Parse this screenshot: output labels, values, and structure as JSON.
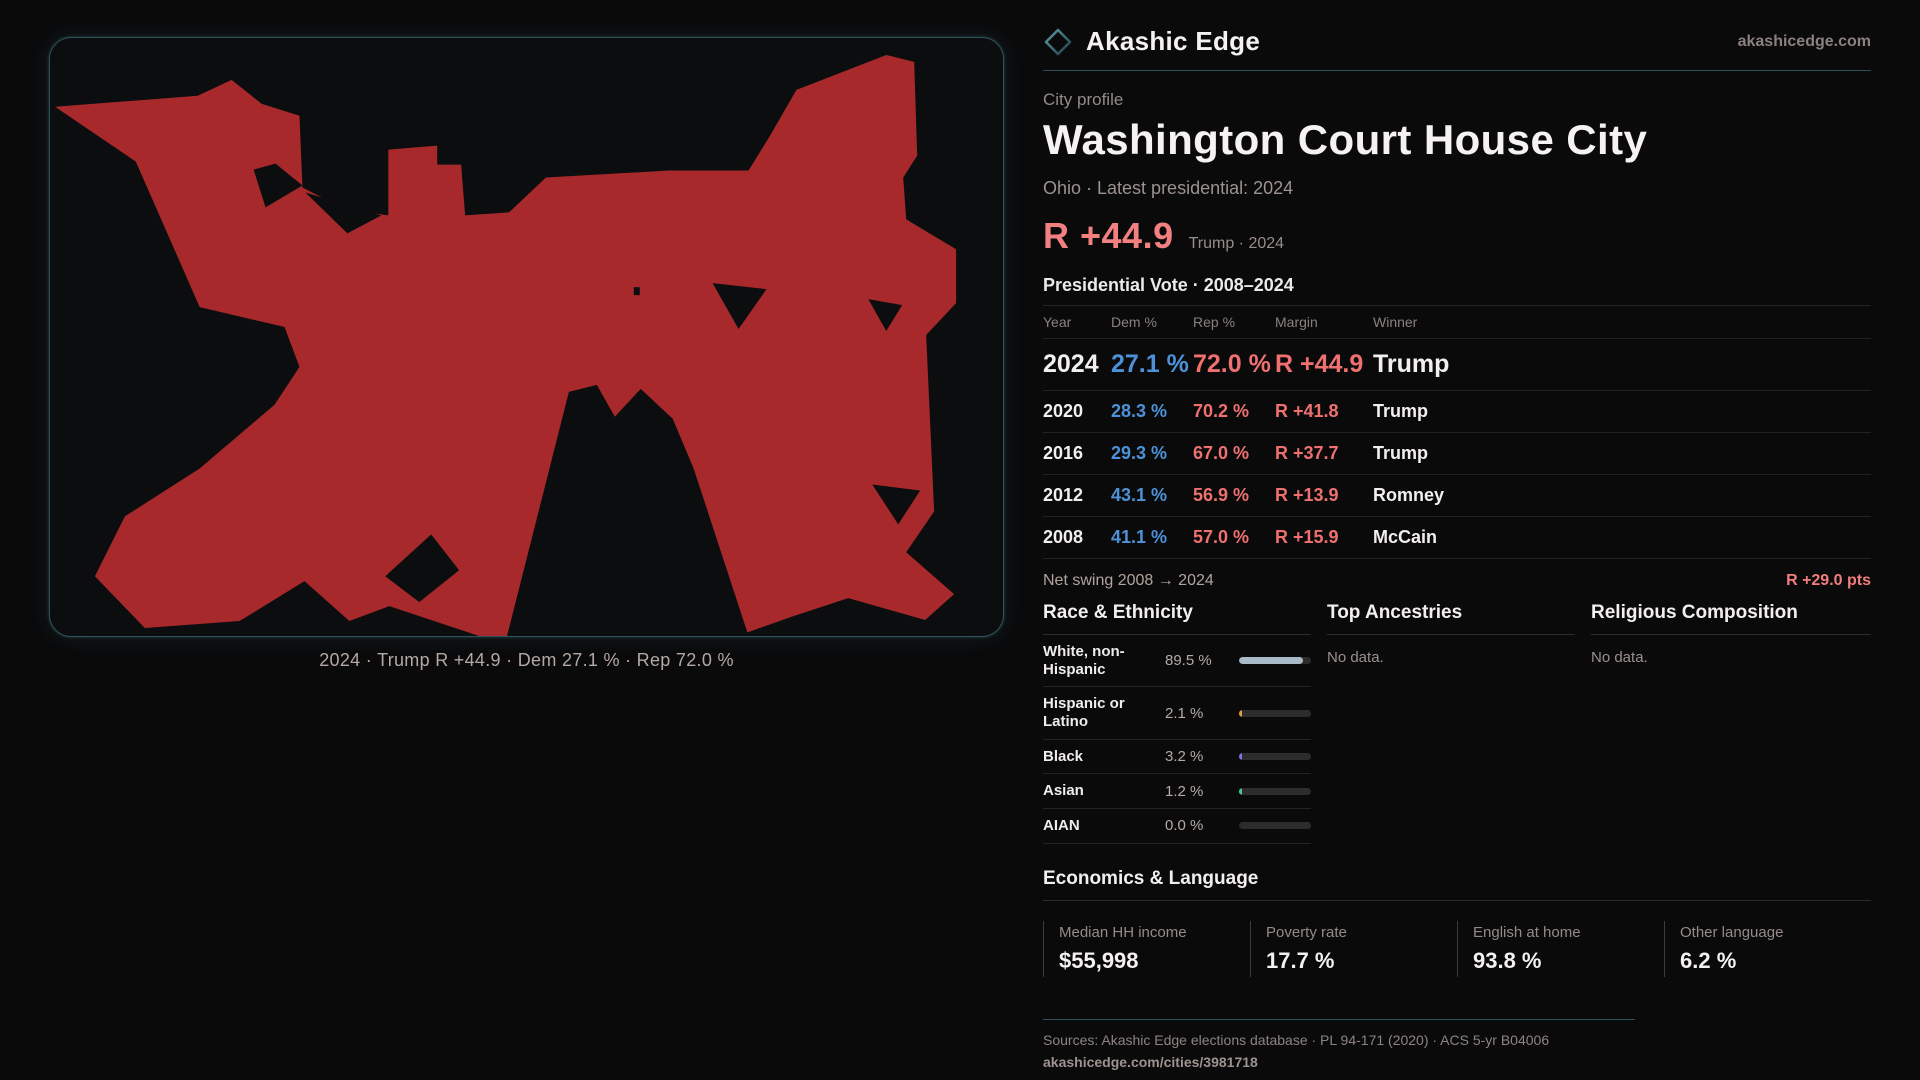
{
  "brand": {
    "name": "Akashic Edge",
    "domain": "akashicedge.com"
  },
  "profile": {
    "kicker": "City profile",
    "title": "Washington Court House City",
    "subtitle": "Ohio · Latest presidential: 2024"
  },
  "headline": {
    "margin": "R +44.9",
    "note": "Trump · 2024"
  },
  "map": {
    "caption": "2024 · Trump R +44.9 · Dem 27.1 % · Rep 72.0 %",
    "shape_color": "#a8292b"
  },
  "table": {
    "title": "Presidential Vote · 2008–2024",
    "headers": [
      "Year",
      "Dem %",
      "Rep %",
      "Margin",
      "Winner"
    ],
    "rows": [
      {
        "year": "2024",
        "dem": "27.1 %",
        "rep": "72.0 %",
        "margin": "R +44.9",
        "winner": "Trump"
      },
      {
        "year": "2020",
        "dem": "28.3 %",
        "rep": "70.2 %",
        "margin": "R +41.8",
        "winner": "Trump"
      },
      {
        "year": "2016",
        "dem": "29.3 %",
        "rep": "67.0 %",
        "margin": "R +37.7",
        "winner": "Trump"
      },
      {
        "year": "2012",
        "dem": "43.1 %",
        "rep": "56.9 %",
        "margin": "R +13.9",
        "winner": "Romney"
      },
      {
        "year": "2008",
        "dem": "41.1 %",
        "rep": "57.0 %",
        "margin": "R +15.9",
        "winner": "McCain"
      }
    ]
  },
  "net_swing": {
    "label": "Net swing 2008 → 2024",
    "value": "R +29.0 pts"
  },
  "race": {
    "title": "Race & Ethnicity",
    "rows": [
      {
        "label": "White, non-Hispanic",
        "value": "89.5 %",
        "percent": 89.5,
        "bar_color": "#a9bac9"
      },
      {
        "label": "Hispanic or Latino",
        "value": "2.1 %",
        "percent": 2.1,
        "bar_color": "#e39f3e"
      },
      {
        "label": "Black",
        "value": "3.2 %",
        "percent": 3.2,
        "bar_color": "#8a70dd"
      },
      {
        "label": "Asian",
        "value": "1.2 %",
        "percent": 1.2,
        "bar_color": "#3fc99b"
      },
      {
        "label": "AIAN",
        "value": "0.0 %",
        "percent": 0,
        "bar_color": "#a9bac9"
      }
    ]
  },
  "ancestries": {
    "title": "Top Ancestries",
    "empty": "No data."
  },
  "religion": {
    "title": "Religious Composition",
    "empty": "No data."
  },
  "economics": {
    "title": "Economics & Language",
    "stats": [
      {
        "label": "Median HH income",
        "value": "$55,998"
      },
      {
        "label": "Poverty rate",
        "value": "17.7 %"
      },
      {
        "label": "English at home",
        "value": "93.8 %"
      },
      {
        "label": "Other language",
        "value": "6.2 %"
      }
    ]
  },
  "footer": {
    "sources": "Sources: Akashic Edge elections database · PL 94-171 (2020) · ACS 5-yr B04006",
    "permalink": "akashicedge.com/cities/3981718"
  },
  "colors": {
    "dem_blue": "#4d92d8",
    "rep_red": "#ee7170",
    "accent_salmon": "#f28080",
    "map_red": "#a8292b",
    "teal_border": "#2c535c"
  }
}
